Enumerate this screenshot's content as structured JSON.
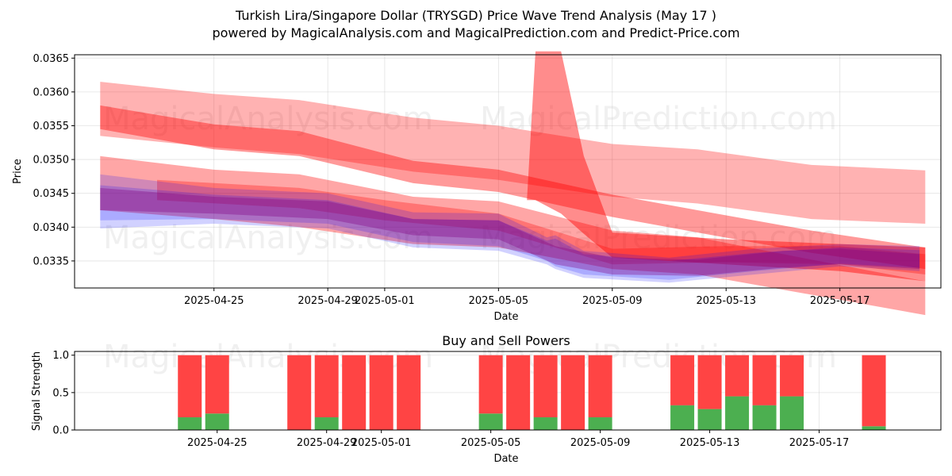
{
  "figure": {
    "title_line1": "Turkish Lira/Singapore Dollar (TRYSGD) Price Wave Trend Analysis (May 17 )",
    "title_line2": "powered by MagicalAnalysis.com and MagicalPrediction.com and Predict-Price.com",
    "watermarks": [
      "MagicalAnalysis.com",
      "MagicalPrediction.com"
    ]
  },
  "chart_data": [
    {
      "type": "area",
      "title": "",
      "xlabel": "Date",
      "ylabel": "Price",
      "xlim": [
        "2025-04-20",
        "2025-05-20"
      ],
      "ylim": [
        0.0331,
        0.03655
      ],
      "yticks": [
        0.0335,
        0.034,
        0.0345,
        0.035,
        0.0355,
        0.036,
        0.0365
      ],
      "xticks": [
        "2025-04-25",
        "2025-04-29",
        "2025-05-01",
        "2025-05-05",
        "2025-05-09",
        "2025-05-13",
        "2025-05-17"
      ],
      "grid": true,
      "colors": {
        "red_band": "#ff0000",
        "blue_band": "#0000ff",
        "purple_band": "#800080"
      },
      "bands": [
        {
          "color": "red",
          "opacity": 0.3,
          "x": [
            "2025-04-21",
            "2025-04-25",
            "2025-04-28",
            "2025-05-02",
            "2025-05-05",
            "2025-05-09",
            "2025-05-12",
            "2025-05-16",
            "2025-05-20"
          ],
          "upper": [
            0.03615,
            0.03597,
            0.03588,
            0.03562,
            0.0355,
            0.03523,
            0.03515,
            0.03492,
            0.03484
          ],
          "lower": [
            0.03535,
            0.03518,
            0.03508,
            0.03482,
            0.0347,
            0.03445,
            0.03435,
            0.03412,
            0.03405
          ]
        },
        {
          "color": "red",
          "opacity": 0.4,
          "x": [
            "2025-04-21",
            "2025-04-25",
            "2025-04-28",
            "2025-05-02",
            "2025-05-05",
            "2025-05-09",
            "2025-05-12",
            "2025-05-16",
            "2025-05-20"
          ],
          "upper": [
            0.0358,
            0.03552,
            0.03542,
            0.03498,
            0.03485,
            0.03448,
            0.03425,
            0.03395,
            0.0337
          ],
          "lower": [
            0.03545,
            0.03515,
            0.03505,
            0.03465,
            0.03452,
            0.03415,
            0.03392,
            0.03362,
            0.03338
          ]
        },
        {
          "color": "red",
          "opacity": 0.35,
          "x": [
            "2025-04-21",
            "2025-04-25",
            "2025-04-28",
            "2025-05-02",
            "2025-05-05",
            "2025-05-09",
            "2025-05-12",
            "2025-05-16",
            "2025-05-20"
          ],
          "upper": [
            0.03505,
            0.03485,
            0.03478,
            0.03445,
            0.03438,
            0.03395,
            0.03385,
            0.03352,
            0.0332
          ],
          "lower": [
            0.03425,
            0.03412,
            0.034,
            0.03375,
            0.0337,
            0.03338,
            0.0333,
            0.033,
            0.0327
          ]
        },
        {
          "color": "red",
          "opacity": 0.45,
          "x": [
            "2025-05-06",
            "2025-05-06.3",
            "2025-05-07.2",
            "2025-05-08",
            "2025-05-09",
            "2025-05-13",
            "2025-05-17",
            "2025-05-20"
          ],
          "upper": [
            0.0344,
            0.0366,
            0.0366,
            0.03505,
            0.03392,
            0.03382,
            0.03375,
            0.0337
          ],
          "lower": [
            0.0344,
            0.0344,
            0.0342,
            0.0339,
            0.03355,
            0.03345,
            0.03335,
            0.0332
          ]
        },
        {
          "color": "red",
          "opacity": 0.3,
          "x": [
            "2025-04-23",
            "2025-04-28",
            "2025-05-01",
            "2025-05-05",
            "2025-05-09",
            "2025-05-13",
            "2025-05-17",
            "2025-05-20"
          ],
          "upper": [
            0.0347,
            0.03458,
            0.0344,
            0.0342,
            0.03368,
            0.03372,
            0.03372,
            0.0336
          ],
          "lower": [
            0.0344,
            0.03428,
            0.0341,
            0.03395,
            0.03345,
            0.03348,
            0.03345,
            0.0333
          ]
        },
        {
          "color": "blue",
          "opacity": 0.18,
          "x": [
            "2025-04-21",
            "2025-04-25",
            "2025-04-29",
            "2025-05-02",
            "2025-05-05",
            "2025-05-06.7",
            "2025-05-07",
            "2025-05-08",
            "2025-05-11",
            "2025-05-14",
            "2025-05-17",
            "2025-05-19.8"
          ],
          "upper": [
            0.03478,
            0.03458,
            0.0345,
            0.03422,
            0.0342,
            0.03385,
            0.03388,
            0.03365,
            0.03355,
            0.03368,
            0.03375,
            0.03372
          ],
          "lower": [
            0.03398,
            0.03405,
            0.03398,
            0.0337,
            0.03365,
            0.03345,
            0.03338,
            0.03325,
            0.03318,
            0.0333,
            0.03342,
            0.03335
          ]
        },
        {
          "color": "blue",
          "opacity": 0.18,
          "x": [
            "2025-04-21",
            "2025-04-25",
            "2025-04-29",
            "2025-05-02",
            "2025-05-05",
            "2025-05-06.7",
            "2025-05-07",
            "2025-05-08",
            "2025-05-11",
            "2025-05-14",
            "2025-05-17",
            "2025-05-19.8"
          ],
          "upper": [
            0.03462,
            0.03448,
            0.0344,
            0.03412,
            0.0341,
            0.0338,
            0.03383,
            0.0336,
            0.0335,
            0.03362,
            0.0337,
            0.03366
          ],
          "lower": [
            0.0341,
            0.03412,
            0.03405,
            0.03378,
            0.03372,
            0.0335,
            0.03342,
            0.0333,
            0.03322,
            0.03335,
            0.03346,
            0.0334
          ]
        },
        {
          "color": "purple",
          "opacity": 0.35,
          "x": [
            "2025-04-21",
            "2025-04-25",
            "2025-04-29",
            "2025-05-02",
            "2025-05-05",
            "2025-05-07",
            "2025-05-09",
            "2025-05-12",
            "2025-05-15",
            "2025-05-17",
            "2025-05-19.8"
          ],
          "upper": [
            0.03458,
            0.03445,
            0.03438,
            0.03412,
            0.0341,
            0.03372,
            0.03355,
            0.03352,
            0.03365,
            0.03368,
            0.0336
          ],
          "lower": [
            0.03425,
            0.0342,
            0.03412,
            0.03388,
            0.03382,
            0.03345,
            0.0333,
            0.03328,
            0.0334,
            0.03345,
            0.03338
          ]
        }
      ]
    },
    {
      "type": "bar",
      "title": "Buy and Sell Powers",
      "xlabel": "Date",
      "ylabel": "Signal Strength",
      "ylim": [
        0,
        1.05
      ],
      "yticks": [
        0.0,
        0.5,
        1.0
      ],
      "xticks": [
        "2025-04-25",
        "2025-04-29",
        "2025-05-01",
        "2025-05-05",
        "2025-05-09",
        "2025-05-13",
        "2025-05-17"
      ],
      "grid": true,
      "colors": {
        "buy": "#4caf50",
        "sell": "#ff4444"
      },
      "dates": [
        "2025-04-24",
        "2025-04-25",
        "2025-04-28",
        "2025-04-29",
        "2025-04-30",
        "2025-05-01",
        "2025-05-02",
        "2025-05-05",
        "2025-05-06",
        "2025-05-07",
        "2025-05-08",
        "2025-05-09",
        "2025-05-12",
        "2025-05-13",
        "2025-05-14",
        "2025-05-15",
        "2025-05-16",
        "2025-05-19"
      ],
      "series": [
        {
          "values": [
            0.17,
            0.22,
            0.0,
            0.17,
            0.0,
            0.0,
            0.0,
            0.22,
            0.0,
            0.17,
            0.0,
            0.17,
            0.33,
            0.28,
            0.45,
            0.33,
            0.45,
            0.05
          ]
        },
        {
          "values": [
            0.83,
            0.78,
            1.0,
            0.83,
            1.0,
            1.0,
            1.0,
            0.78,
            1.0,
            0.83,
            1.0,
            0.83,
            0.67,
            0.72,
            0.55,
            0.67,
            0.55,
            0.95
          ]
        }
      ]
    }
  ]
}
